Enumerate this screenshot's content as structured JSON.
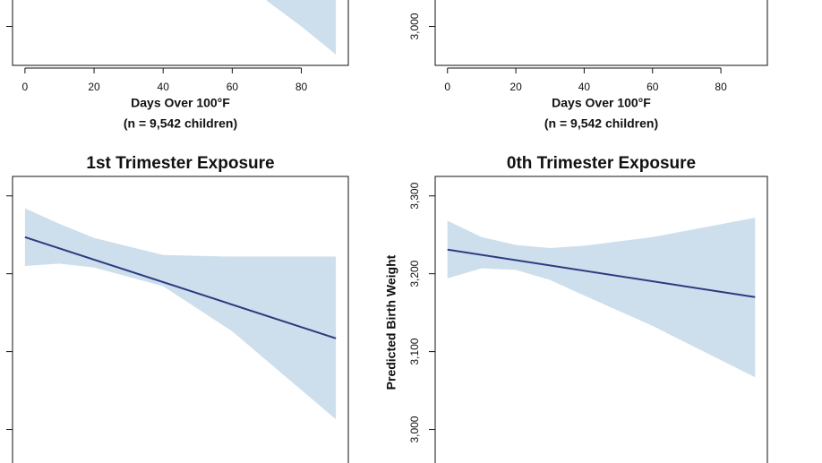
{
  "chart_data": [
    {
      "type": "line",
      "xlabel": "Days Over 100°F",
      "note": "(n = 9,542 children)",
      "xlim": [
        -3.6,
        93.6
      ],
      "ylim": [
        2950,
        3325
      ],
      "xticks": [
        0,
        20,
        40,
        60,
        80
      ],
      "yticks": [
        3000
      ],
      "band": {
        "x": [
          70,
          80,
          90
        ],
        "lower": [
          3033,
          3000,
          2964
        ],
        "color": "#cddfec"
      }
    },
    {
      "type": "line",
      "xlabel": "Days Over 100°F",
      "note": "(n = 9,542 children)",
      "xlim": [
        -3.6,
        93.6
      ],
      "ylim": [
        2950,
        3325
      ],
      "xticks": [
        0,
        20,
        40,
        60,
        80
      ],
      "yticks": [
        {
          "value": 3000,
          "label": "3,000"
        }
      ]
    },
    {
      "type": "line",
      "title": "1st Trimester Exposure",
      "xlim": [
        -3.6,
        93.6
      ],
      "ylim": [
        2950,
        3325
      ],
      "yticks": [
        3000,
        3100,
        3200,
        3300
      ],
      "band": {
        "x": [
          0,
          10,
          20,
          40,
          60,
          90
        ],
        "upper": [
          3284,
          3264,
          3246,
          3224,
          3222,
          3222
        ],
        "lower": [
          3210,
          3213,
          3208,
          3184,
          3126,
          3013
        ],
        "color": "#cddfec"
      },
      "line": {
        "x": [
          0,
          90
        ],
        "values": [
          3247,
          3117
        ],
        "color": "#2e3a80"
      }
    },
    {
      "type": "line",
      "title": "0th Trimester Exposure",
      "ylabel": "Predicted Birth Weight",
      "xlim": [
        -3.6,
        93.6
      ],
      "ylim": [
        2950,
        3325
      ],
      "yticks": [
        {
          "value": 3000,
          "label": "3,000"
        },
        {
          "value": 3100,
          "label": "3,100"
        },
        {
          "value": 3200,
          "label": "3,200"
        },
        {
          "value": 3300,
          "label": "3,300"
        }
      ],
      "band": {
        "x": [
          0,
          10,
          20,
          30,
          40,
          60,
          90
        ],
        "upper": [
          3268,
          3247,
          3237,
          3233,
          3236,
          3247,
          3272
        ],
        "lower": [
          3194,
          3207,
          3205,
          3192,
          3172,
          3133,
          3067
        ],
        "color": "#cddfec"
      },
      "line": {
        "x": [
          0,
          90
        ],
        "values": [
          3231,
          3170
        ],
        "color": "#2e3a80"
      }
    }
  ]
}
